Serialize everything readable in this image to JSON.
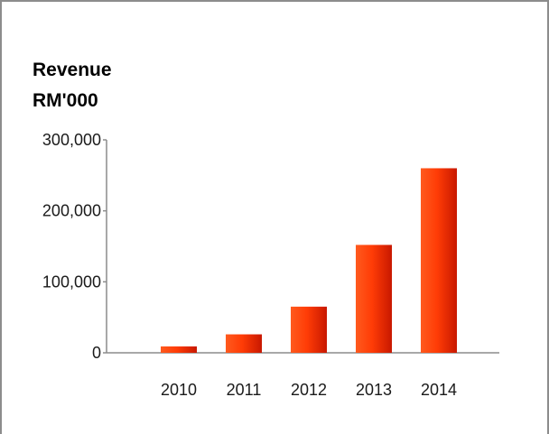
{
  "chart_data": {
    "type": "bar",
    "title": "Revenue",
    "subtitle": "RM'000",
    "categories": [
      "2010",
      "2011",
      "2012",
      "2013",
      "2014"
    ],
    "values": [
      9000,
      26000,
      65000,
      152000,
      260000
    ],
    "ylim": [
      0,
      300000
    ],
    "yticks": [
      0,
      100000,
      200000,
      300000
    ],
    "ytick_labels": [
      "0",
      "100,000",
      "200,000",
      "300,000"
    ],
    "grid": false,
    "legend": "none",
    "colors": {
      "bar_light": "#ff5a1e",
      "bar_dark": "#c81800",
      "bar_mid": "#ff3c06",
      "axis": "#8c8c8c"
    }
  }
}
